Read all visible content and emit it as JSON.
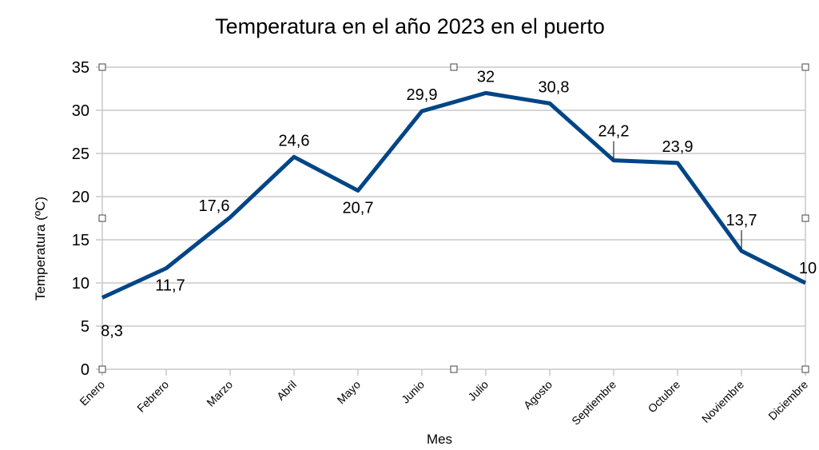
{
  "chart_data": {
    "type": "line",
    "title": "Temperatura en el año 2023 en el puerto",
    "xlabel": "Mes",
    "ylabel": "Temperatura (ºC)",
    "categories": [
      "Enero",
      "Febrero",
      "Marzo",
      "Abril",
      "Mayo",
      "Junio",
      "Julio",
      "Agosto",
      "Septiembre",
      "Octubre",
      "Noviembre",
      "Diciembre"
    ],
    "series": [
      {
        "name": "Temperatura",
        "color": "#004586",
        "values": [
          8.3,
          11.7,
          17.6,
          24.6,
          20.7,
          29.9,
          32,
          30.8,
          24.2,
          23.9,
          13.7,
          10
        ],
        "data_labels": [
          "8,3",
          "11,7",
          "17,6",
          "24,6",
          "20,7",
          "29,9",
          "32",
          "30,8",
          "24,2",
          "23,9",
          "13,7",
          "10"
        ]
      }
    ],
    "ylim": [
      0,
      35
    ],
    "yticks": [
      0,
      5,
      10,
      15,
      20,
      25,
      30,
      35
    ],
    "ytick_labels": [
      "0",
      "5",
      "10",
      "15",
      "20",
      "25",
      "30",
      "35"
    ],
    "grid": true,
    "legend": "none"
  }
}
